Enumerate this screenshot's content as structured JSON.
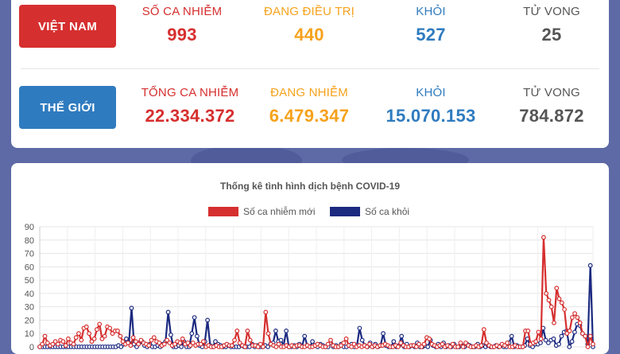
{
  "theme": {
    "red": "#d62f2f",
    "orange": "#f6a21c",
    "blue": "#2f7bbf",
    "gray": "#555555",
    "navy": "#1c2a80"
  },
  "vietnam": {
    "label": "VIỆT NAM",
    "cases_label": "SỐ CA NHIỄM",
    "cases": "993",
    "treating_label": "ĐANG ĐIỀU TRỊ",
    "treating": "440",
    "recovered_label": "KHỎI",
    "recovered": "527",
    "deaths_label": "TỬ VONG",
    "deaths": "25"
  },
  "world": {
    "label": "THẾ GIỚI",
    "cases_label": "TỔNG CA NHIỄM",
    "cases": "22.334.372",
    "active_label": "ĐANG NHIỄM",
    "active": "6.479.347",
    "recovered_label": "KHỎI",
    "recovered": "15.070.153",
    "deaths_label": "TỬ VONG",
    "deaths": "784.872"
  },
  "chart_data": {
    "type": "line",
    "title": "Thống kê tình hình dịch bệnh COVID-19",
    "legend_position": "top",
    "ylim": [
      0,
      90
    ],
    "yticks": [
      "0",
      "10",
      "20",
      "30",
      "40",
      "50",
      "60",
      "70",
      "80",
      "90"
    ],
    "grid": true,
    "series": [
      {
        "name": "Số ca nhiễm mới",
        "color": "#d62f2f",
        "values": [
          0,
          2,
          8,
          3,
          1,
          2,
          4,
          2,
          5,
          4,
          1,
          6,
          3,
          2,
          7,
          10,
          5,
          14,
          15,
          10,
          4,
          6,
          13,
          17,
          6,
          8,
          15,
          14,
          10,
          12,
          12,
          8,
          4,
          2,
          3,
          1,
          7,
          4,
          2,
          5,
          3,
          2,
          1,
          5,
          7,
          4,
          3,
          1,
          2,
          5,
          3,
          1,
          2,
          4,
          3,
          6,
          2,
          3,
          1,
          3,
          1,
          2,
          2,
          4,
          0,
          1,
          0,
          0,
          1,
          0,
          0,
          1,
          2,
          1,
          1,
          5,
          12,
          3,
          1,
          0,
          12,
          5,
          1,
          1,
          0,
          2,
          0,
          26,
          10,
          2,
          1,
          0,
          2,
          0,
          0,
          1,
          0,
          1,
          0,
          1,
          1,
          0,
          0,
          1,
          0,
          0,
          1,
          2,
          1,
          0,
          0,
          2,
          5,
          1,
          0,
          0,
          1,
          3,
          6,
          1,
          0,
          2,
          0,
          1,
          0,
          1,
          0,
          2,
          0,
          1,
          0,
          1,
          1,
          2,
          1,
          0,
          0,
          1,
          0,
          3,
          1,
          0,
          0,
          1,
          1,
          0,
          2,
          0,
          2,
          7,
          6,
          2,
          1,
          0,
          1,
          2,
          0,
          1,
          0,
          2,
          0,
          0,
          3,
          0,
          3,
          1,
          0,
          0,
          1,
          0,
          1,
          13,
          3,
          1,
          0,
          0,
          1,
          0,
          2,
          1,
          3,
          0,
          0,
          1,
          0,
          0,
          0,
          12,
          12,
          2,
          3,
          4,
          11,
          6,
          82,
          40,
          35,
          30,
          18,
          44,
          36,
          33,
          28,
          10,
          12,
          22,
          25,
          22,
          18,
          10,
          8,
          0,
          8,
          2
        ]
      },
      {
        "name": "Số ca khỏi",
        "color": "#1c2a80",
        "values": [
          0,
          0,
          0,
          0,
          0,
          0,
          0,
          0,
          0,
          0,
          0,
          0,
          0,
          0,
          0,
          0,
          0,
          0,
          0,
          0,
          0,
          0,
          0,
          0,
          0,
          0,
          0,
          0,
          0,
          0,
          1,
          0,
          2,
          6,
          3,
          29,
          2,
          0,
          3,
          4,
          1,
          0,
          2,
          0,
          0,
          1,
          0,
          2,
          4,
          26,
          9,
          0,
          0,
          1,
          0,
          4,
          0,
          0,
          10,
          22,
          8,
          1,
          0,
          4,
          20,
          1,
          0,
          4,
          2,
          1,
          0,
          0,
          1,
          0,
          0,
          0,
          0,
          1,
          0,
          0,
          0,
          2,
          0,
          1,
          0,
          0,
          1,
          0,
          2,
          3,
          12,
          4,
          5,
          1,
          12,
          0,
          0,
          1,
          0,
          2,
          0,
          8,
          1,
          0,
          4,
          1,
          0,
          2,
          1,
          0,
          0,
          3,
          0,
          1,
          0,
          2,
          0,
          0,
          1,
          2,
          0,
          1,
          14,
          5,
          1,
          0,
          3,
          0,
          2,
          0,
          1,
          10,
          1,
          0,
          0,
          4,
          0,
          1,
          8,
          0,
          2,
          0,
          1,
          0,
          3,
          0,
          0,
          1,
          0,
          5,
          1,
          0,
          2,
          0,
          3,
          0,
          1,
          0,
          2,
          0,
          0,
          1,
          0,
          2,
          1,
          0,
          0,
          2,
          0,
          1,
          0,
          1,
          0,
          0,
          1,
          0,
          1,
          0,
          0,
          3,
          8,
          0,
          1,
          0,
          0,
          1,
          6,
          1,
          0,
          2,
          2,
          3,
          14,
          5,
          3,
          5,
          6,
          1,
          2,
          8,
          11,
          12,
          0,
          4,
          11,
          17,
          16,
          10,
          8,
          2,
          61,
          0
        ]
      }
    ]
  }
}
